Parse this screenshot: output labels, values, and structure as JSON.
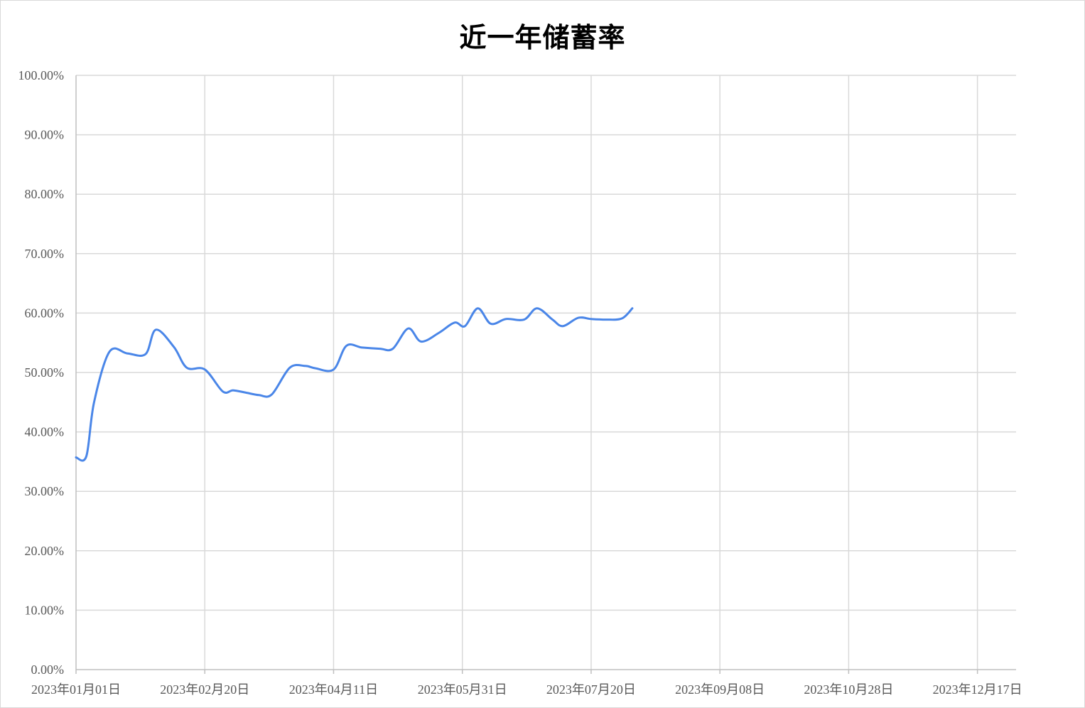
{
  "chart_data": {
    "type": "line",
    "title": "近一年储蓄率",
    "xlabel": "",
    "ylabel": "",
    "x_ticks": [
      "2023年01月01日",
      "2023年02月20日",
      "2023年04月11日",
      "2023年05月31日",
      "2023年07月20日",
      "2023年09月08日",
      "2023年10月28日",
      "2023年12月17日"
    ],
    "y_ticks": [
      "0.00%",
      "10.00%",
      "20.00%",
      "30.00%",
      "40.00%",
      "50.00%",
      "60.00%",
      "70.00%",
      "80.00%",
      "90.00%",
      "100.00%"
    ],
    "xlim": [
      "2023-01-01",
      "2024-01-01"
    ],
    "ylim": [
      0,
      1
    ],
    "grid": true,
    "legend": "none",
    "smooth": true,
    "series": [
      {
        "color": "#4a86e8",
        "x": [
          "2023-01-01",
          "2023-01-05",
          "2023-01-08",
          "2023-01-14",
          "2023-01-21",
          "2023-01-28",
          "2023-02-01",
          "2023-02-08",
          "2023-02-13",
          "2023-02-20",
          "2023-02-27",
          "2023-03-03",
          "2023-03-08",
          "2023-03-13",
          "2023-03-18",
          "2023-03-25",
          "2023-03-31",
          "2023-04-04",
          "2023-04-11",
          "2023-04-16",
          "2023-04-22",
          "2023-04-29",
          "2023-05-04",
          "2023-05-10",
          "2023-05-15",
          "2023-05-22",
          "2023-05-28",
          "2023-06-01",
          "2023-06-06",
          "2023-06-11",
          "2023-06-17",
          "2023-06-24",
          "2023-06-29",
          "2023-07-05",
          "2023-07-09",
          "2023-07-15",
          "2023-07-20",
          "2023-07-26",
          "2023-08-01",
          "2023-08-05"
        ],
        "values": [
          0.357,
          0.359,
          0.45,
          0.535,
          0.532,
          0.531,
          0.572,
          0.543,
          0.508,
          0.505,
          0.468,
          0.47,
          0.466,
          0.462,
          0.463,
          0.508,
          0.511,
          0.507,
          0.505,
          0.545,
          0.542,
          0.54,
          0.54,
          0.574,
          0.552,
          0.567,
          0.584,
          0.578,
          0.608,
          0.582,
          0.59,
          0.589,
          0.608,
          0.589,
          0.578,
          0.592,
          0.59,
          0.589,
          0.591,
          0.608
        ]
      }
    ]
  }
}
